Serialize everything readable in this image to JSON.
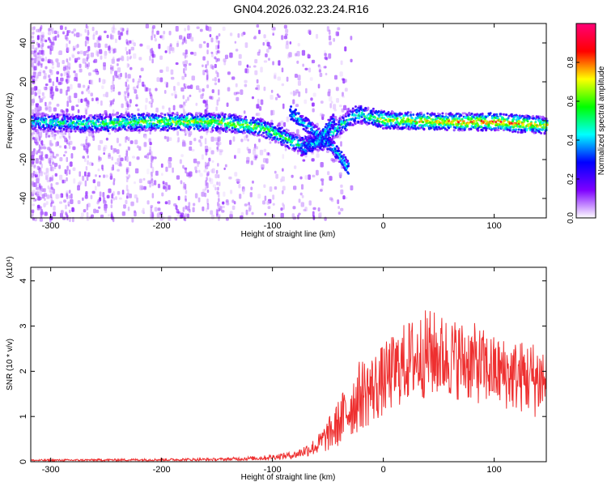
{
  "title": "GN04.2026.032.23.24.R16",
  "chart_data": [
    {
      "type": "heatmap",
      "xlabel": "Height of straight line (km)",
      "ylabel": "Frequency (Hz)",
      "xlim": [
        -318,
        147
      ],
      "ylim": [
        -50,
        50
      ],
      "xticks": [
        -300,
        -200,
        -100,
        0,
        100
      ],
      "xtick_labels": [
        "-300",
        "-200",
        "-100",
        "0",
        "100"
      ],
      "yticks": [
        -40,
        -20,
        0,
        20,
        40
      ],
      "ytick_labels": [
        "-40",
        "-20",
        "0",
        "20",
        "40"
      ],
      "colorbar": {
        "label": "Normalized spectral amplitude",
        "range": [
          0,
          1
        ],
        "ticks": [
          0.0,
          0.2,
          0.4,
          0.6,
          0.8
        ],
        "tick_labels": [
          "0.0",
          "0.2",
          "0.4",
          "0.6",
          "0.8"
        ],
        "colormap": [
          "#ffffff",
          "#7e00ff",
          "#0000ff",
          "#00ffff",
          "#00ff00",
          "#ffff00",
          "#ff0000",
          "#ff0077"
        ]
      },
      "main_trace": [
        {
          "x": -318,
          "y": 0,
          "amp": 0.45
        },
        {
          "x": -270,
          "y": -1,
          "amp": 0.5
        },
        {
          "x": -220,
          "y": 0,
          "amp": 0.6
        },
        {
          "x": -150,
          "y": 0,
          "amp": 0.65
        },
        {
          "x": -110,
          "y": -3,
          "amp": 0.6
        },
        {
          "x": -90,
          "y": -8,
          "amp": 0.55
        },
        {
          "x": -75,
          "y": -12,
          "amp": 0.5
        },
        {
          "x": -55,
          "y": -10,
          "amp": 0.4
        },
        {
          "x": -40,
          "y": -2,
          "amp": 0.45
        },
        {
          "x": -25,
          "y": 4,
          "amp": 0.5
        },
        {
          "x": 0,
          "y": 1,
          "amp": 0.65
        },
        {
          "x": 50,
          "y": 0,
          "amp": 0.75
        },
        {
          "x": 100,
          "y": 0,
          "amp": 0.85
        },
        {
          "x": 147,
          "y": -2,
          "amp": 0.7
        }
      ],
      "branches": [
        [
          {
            "x": -85,
            "y": 5
          },
          {
            "x": -65,
            "y": -4
          },
          {
            "x": -45,
            "y": -14
          },
          {
            "x": -32,
            "y": -24
          }
        ],
        [
          {
            "x": -45,
            "y": 2
          },
          {
            "x": -60,
            "y": -10
          },
          {
            "x": -75,
            "y": -14
          }
        ]
      ]
    },
    {
      "type": "line",
      "xlabel": "Height of straight line (km)",
      "ylabel": "SNR (10 * v/v)",
      "scale_label": "(x10⁴)",
      "xlim": [
        -318,
        147
      ],
      "ylim": [
        0,
        4.3
      ],
      "xticks": [
        -300,
        -200,
        -100,
        0,
        100
      ],
      "xtick_labels": [
        "-300",
        "-200",
        "-100",
        "0",
        "100"
      ],
      "yticks": [
        0,
        1,
        2,
        3,
        4
      ],
      "ytick_labels": [
        "0",
        "1",
        "2",
        "3",
        "4"
      ],
      "color": "#ee3030",
      "envelope_x": [
        -318,
        -150,
        -110,
        -80,
        -60,
        -45,
        -30,
        -20,
        -10,
        0,
        20,
        40,
        60,
        80,
        100,
        120,
        147
      ],
      "envelope_mean": [
        0.03,
        0.05,
        0.08,
        0.15,
        0.35,
        0.7,
        1.2,
        1.5,
        1.6,
        1.8,
        2.2,
        2.4,
        2.3,
        2.2,
        2.0,
        1.9,
        1.8
      ],
      "envelope_spread": [
        0.02,
        0.03,
        0.05,
        0.08,
        0.2,
        0.45,
        0.7,
        0.8,
        0.8,
        0.8,
        0.9,
        1.0,
        0.9,
        0.9,
        0.8,
        0.8,
        0.9
      ]
    }
  ]
}
